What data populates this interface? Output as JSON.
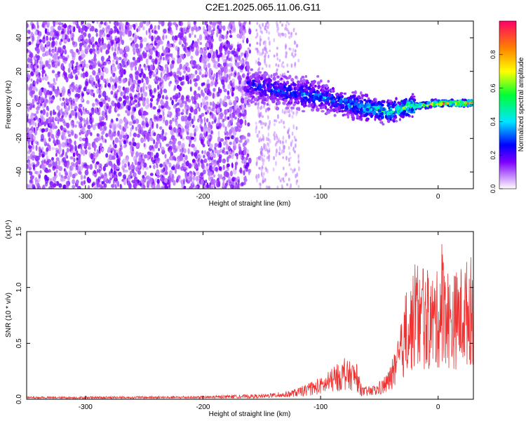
{
  "figure_title": "C2E1.2025.065.11.06.G11",
  "chart_data": [
    {
      "type": "heatmap",
      "xlabel": "Height of straight line (km)",
      "ylabel": "Frequency (Hz)",
      "xlim": [
        -350,
        30
      ],
      "ylim": [
        -50,
        50
      ],
      "xticks": [
        -300,
        -200,
        -100,
        0
      ],
      "yticks": [
        -40,
        -20,
        0,
        20,
        40
      ],
      "colorbar": {
        "label": "Normalized spectral amplitude",
        "range": [
          0.0,
          1.0
        ],
        "ticks": [
          0.0,
          0.2,
          0.4,
          0.6,
          0.8
        ],
        "colormap": [
          "#ffffff",
          "#7d00ff",
          "#0000ff",
          "#00e5ff",
          "#00ff33",
          "#ffff00",
          "#ff8000",
          "#ff0066"
        ]
      },
      "ridge": [
        {
          "x": -160,
          "y": 12
        },
        {
          "x": -140,
          "y": 9
        },
        {
          "x": -120,
          "y": 7
        },
        {
          "x": -100,
          "y": 5
        },
        {
          "x": -80,
          "y": 1
        },
        {
          "x": -60,
          "y": -2
        },
        {
          "x": -40,
          "y": -4
        },
        {
          "x": -25,
          "y": -1
        },
        {
          "x": -10,
          "y": 0
        },
        {
          "x": 0,
          "y": 1
        },
        {
          "x": 20,
          "y": 1
        }
      ],
      "ridge_amplitude": [
        {
          "x": -160,
          "a": 0.28
        },
        {
          "x": -120,
          "a": 0.35
        },
        {
          "x": -80,
          "a": 0.42
        },
        {
          "x": -50,
          "a": 0.55
        },
        {
          "x": -30,
          "a": 0.62
        },
        {
          "x": -20,
          "a": 0.78
        },
        {
          "x": 0,
          "a": 0.92
        },
        {
          "x": 30,
          "a": 0.95
        }
      ],
      "noise_edge_x": -160
    },
    {
      "type": "line",
      "xlabel": "Height of straight line (km)",
      "ylabel": "SNR (10 * v/v)",
      "scale_label": "(x10⁴)",
      "xlim": [
        -350,
        30
      ],
      "ylim": [
        0,
        1.5
      ],
      "xticks": [
        -300,
        -200,
        -100,
        0
      ],
      "yticks": [
        0.0,
        0.5,
        1.0,
        1.5
      ],
      "color": "#ee3333",
      "envelope": [
        {
          "x": -350,
          "y": 0.02
        },
        {
          "x": -200,
          "y": 0.025
        },
        {
          "x": -150,
          "y": 0.04
        },
        {
          "x": -130,
          "y": 0.06
        },
        {
          "x": -110,
          "y": 0.12
        },
        {
          "x": -95,
          "y": 0.2
        },
        {
          "x": -80,
          "y": 0.32
        },
        {
          "x": -70,
          "y": 0.3
        },
        {
          "x": -65,
          "y": 0.1
        },
        {
          "x": -55,
          "y": 0.1
        },
        {
          "x": -45,
          "y": 0.18
        },
        {
          "x": -35,
          "y": 0.4
        },
        {
          "x": -28,
          "y": 0.8
        },
        {
          "x": -20,
          "y": 1.05
        },
        {
          "x": -10,
          "y": 1.0
        },
        {
          "x": 0,
          "y": 1.05
        },
        {
          "x": 5,
          "y": 1.3
        },
        {
          "x": 10,
          "y": 1.0
        },
        {
          "x": 20,
          "y": 1.1
        },
        {
          "x": 30,
          "y": 1.2
        }
      ]
    }
  ]
}
